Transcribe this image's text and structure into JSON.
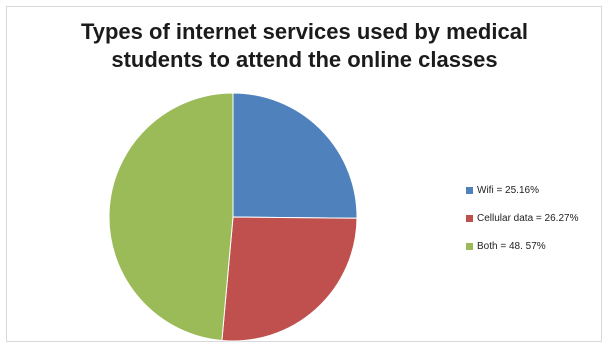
{
  "chart_data": {
    "type": "pie",
    "title_lines": [
      "Types of internet services used by medical",
      "students to attend the online classes"
    ],
    "slices": [
      {
        "label": "Wifi = 25.16%",
        "name": "Wifi",
        "value": 25.16,
        "color": "#4f81bd"
      },
      {
        "label": "Cellular data = 26.27%",
        "name": "Cellular data",
        "value": 26.27,
        "color": "#c0504d"
      },
      {
        "label": "Both = 48. 57%",
        "name": "Both",
        "value": 48.57,
        "color": "#9bbb59"
      }
    ],
    "legend_position": "right"
  }
}
